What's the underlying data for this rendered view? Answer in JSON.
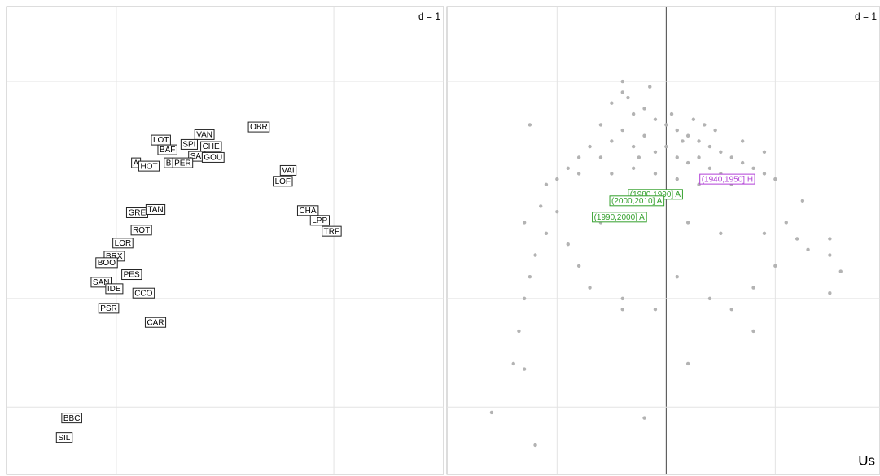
{
  "chart_data": [
    {
      "type": "label-scatter",
      "title": "d = 1",
      "labels": [
        "LOT",
        "VAN",
        "BAF",
        "SPI",
        "CHE",
        "SAI",
        "GOU",
        "A",
        "HOT",
        "B",
        "PER",
        "OBR",
        "VAI",
        "LOF",
        "GRE",
        "TAN",
        "ROT",
        "CHA",
        "LPP",
        "TRF",
        "LOR",
        "BRX",
        "BOO",
        "PES",
        "SAN",
        "IDE",
        "CCO",
        "PSR",
        "CAR",
        "BBC",
        "SIL"
      ],
      "x": [
        -0.59,
        -0.19,
        -0.53,
        -0.33,
        -0.13,
        -0.26,
        -0.11,
        -0.82,
        -0.7,
        -0.52,
        -0.39,
        0.31,
        0.58,
        0.53,
        -0.81,
        -0.64,
        -0.77,
        0.76,
        0.87,
        0.98,
        -0.94,
        -1.02,
        -1.09,
        -0.86,
        -1.14,
        -1.02,
        -0.75,
        -1.07,
        -0.64,
        -1.41,
        -1.48
      ],
      "values": [
        0.46,
        0.51,
        0.37,
        0.42,
        0.4,
        0.31,
        0.3,
        0.25,
        0.22,
        0.25,
        0.25,
        0.58,
        0.18,
        0.08,
        -0.21,
        -0.18,
        -0.37,
        -0.19,
        -0.28,
        -0.38,
        -0.49,
        -0.61,
        -0.67,
        -0.78,
        -0.85,
        -0.91,
        -0.95,
        -1.09,
        -1.22,
        -2.1,
        -2.28
      ],
      "xlim": [
        -2.01,
        2.01
      ],
      "ylim": [
        -2.62,
        1.69
      ],
      "xticks": [
        -1,
        0,
        1
      ],
      "yticks": [
        -2,
        -1,
        0,
        1
      ],
      "grid": true
    },
    {
      "type": "scatter",
      "title": "d = 1",
      "corner_label": "Us",
      "color": "#b3b3b3",
      "x": [
        -0.6,
        -0.5,
        -0.4,
        -0.3,
        -0.2,
        -0.1,
        0,
        0.1,
        0.2,
        0.3,
        0.4,
        0.5,
        0.6,
        0.7,
        0.8,
        0.9,
        1.0,
        -0.7,
        -0.8,
        -0.9,
        -1.0,
        -1.1,
        -0.6,
        -0.5,
        -0.4,
        -0.3,
        -0.2,
        -0.1,
        0,
        0.1,
        0.2,
        0.3,
        0.4,
        0.5,
        0.6,
        0.7,
        -0.5,
        -0.3,
        -0.1,
        0.1,
        0.3,
        -0.4,
        -0.35,
        -0.15,
        0.05,
        0.25,
        0.45,
        -0.25,
        0.15,
        0.35,
        -1.0,
        -1.1,
        -1.2,
        -1.25,
        -1.3,
        -1.35,
        -1.4,
        -1.6,
        -1.2,
        -0.9,
        -0.8,
        -0.6,
        -0.2,
        0.2,
        0.5,
        0.9,
        1.1,
        1.2,
        1.3,
        1.25,
        1.0,
        0.8,
        0.4,
        -0.4,
        -0.4,
        -0.1,
        0.6,
        0.8,
        0.2,
        -1.3,
        -0.2,
        0.1,
        -0.7,
        1.5,
        1.6,
        1.5,
        -1.25,
        0.9,
        0.7,
        -0.8,
        -1.3,
        -1.15,
        1.5
      ],
      "values": [
        0.6,
        0.8,
        0.9,
        0.7,
        0.75,
        0.65,
        0.6,
        0.55,
        0.5,
        0.45,
        0.4,
        0.35,
        0.3,
        0.25,
        0.2,
        0.15,
        0.1,
        0.4,
        0.3,
        0.2,
        0.1,
        0.05,
        0.3,
        0.45,
        0.55,
        0.4,
        0.5,
        0.35,
        0.4,
        0.3,
        0.25,
        0.3,
        0.2,
        0.15,
        0.05,
        0.1,
        0.15,
        0.2,
        0.15,
        0.1,
        0.05,
        1.0,
        0.85,
        0.95,
        0.7,
        0.65,
        0.55,
        0.3,
        0.45,
        0.6,
        -0.2,
        -0.4,
        -0.6,
        -0.8,
        -1.0,
        -1.3,
        -1.6,
        -2.05,
        -2.35,
        -0.5,
        -0.7,
        -0.3,
        -0.25,
        -0.3,
        -0.4,
        -0.4,
        -0.3,
        -0.45,
        -0.55,
        -0.1,
        -0.7,
        -0.9,
        -1.0,
        -1.0,
        -1.1,
        -1.1,
        -1.1,
        -1.3,
        -1.6,
        -1.65,
        -2.1,
        -0.8,
        -0.9,
        -0.6,
        -0.75,
        -0.45,
        0.6,
        0.35,
        0.45,
        0.15,
        -0.3,
        -0.15,
        -0.95
      ],
      "annotations": [
        {
          "text": "(1980,1990] A",
          "x": -0.1,
          "y": -0.04,
          "color": "#33a02c"
        },
        {
          "text": "(2000,2010] A",
          "x": -0.27,
          "y": -0.1,
          "color": "#33a02c"
        },
        {
          "text": "(1990,2000] A",
          "x": -0.43,
          "y": -0.25,
          "color": "#33a02c"
        },
        {
          "text": "(1940,1950] H",
          "x": 0.56,
          "y": 0.1,
          "color": "#b23fd6"
        }
      ],
      "xlim": [
        -2.01,
        1.96
      ],
      "ylim": [
        -2.62,
        1.69
      ],
      "xticks": [
        -1,
        0,
        1
      ],
      "yticks": [
        -2,
        -1,
        0,
        1
      ],
      "grid": true
    }
  ]
}
